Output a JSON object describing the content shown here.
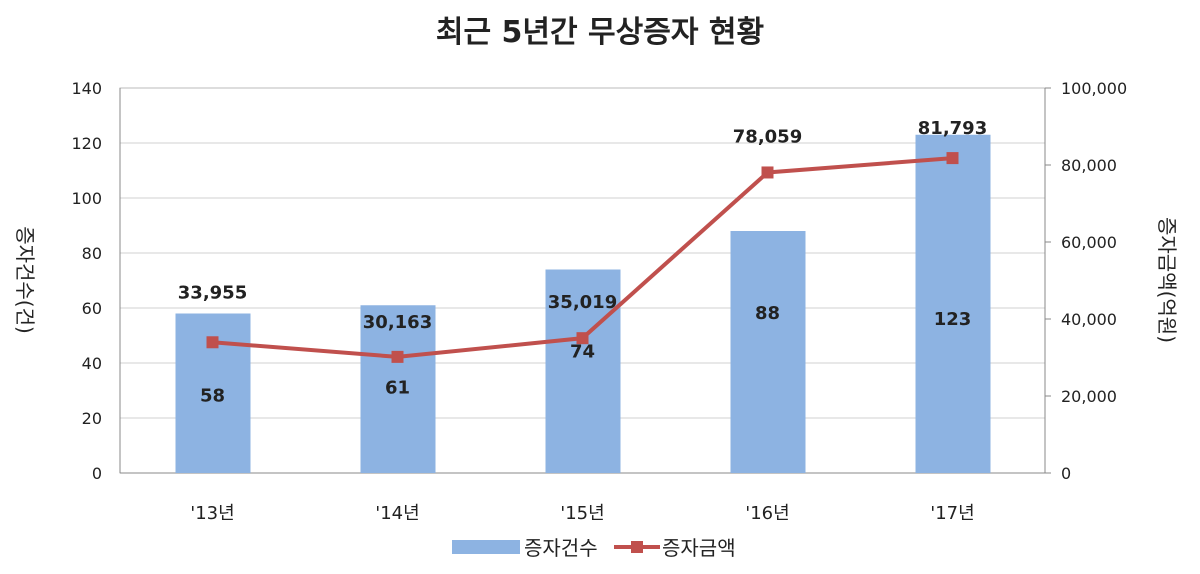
{
  "chart_data": {
    "type": "bar+line",
    "title": "최근 5년간 무상증자 현황",
    "categories": [
      "'13년",
      "'14년",
      "'15년",
      "'16년",
      "'17년"
    ],
    "series": [
      {
        "name": "증자건수",
        "type": "bar",
        "axis": "left",
        "color": "#8db3e2",
        "values": [
          58,
          61,
          74,
          88,
          123
        ],
        "labels": [
          "58",
          "61",
          "74",
          "88",
          "123"
        ]
      },
      {
        "name": "증자금액",
        "type": "line",
        "axis": "right",
        "color": "#c0504d",
        "values": [
          33955,
          30163,
          35019,
          78059,
          81793
        ],
        "labels": [
          "33,955",
          "30,163",
          "35,019",
          "78,059",
          "81,793"
        ]
      }
    ],
    "ylabel": "증자건수(건)",
    "y2label": "증자금액(억원)",
    "ylim": [
      0,
      140
    ],
    "y2lim": [
      0,
      100000
    ],
    "yticks": [
      "0",
      "20",
      "40",
      "60",
      "80",
      "100",
      "120",
      "140"
    ],
    "y2ticks": [
      "0",
      "20,000",
      "40,000",
      "60,000",
      "80,000",
      "100,000"
    ],
    "grid": true,
    "legend": "bottom"
  }
}
